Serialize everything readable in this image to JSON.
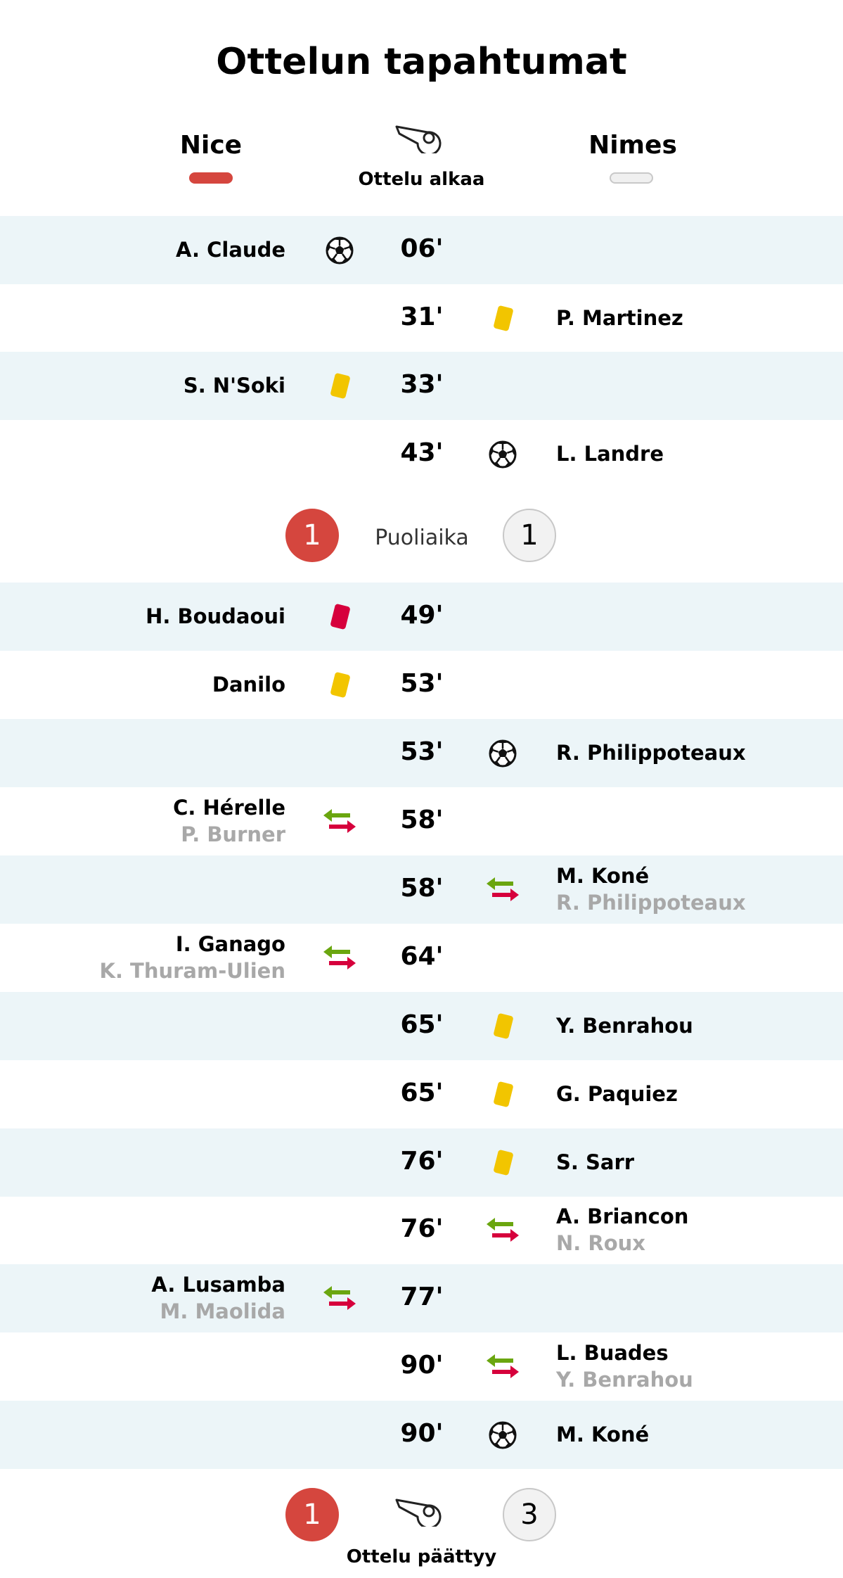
{
  "title": "Ottelun tapahtumat",
  "teams": {
    "home": "Nice",
    "away": "Nimes"
  },
  "start_label": "Ottelu alkaa",
  "end_label": "Ottelu päättyy",
  "halftime": {
    "label": "Puoliaika",
    "home": "1",
    "away": "1"
  },
  "fulltime": {
    "home": "1",
    "away": "3"
  },
  "colors": {
    "home": "#d5463e",
    "shade": "#ecf5f8",
    "yellow": "#f2c500",
    "red": "#d6003c",
    "sub_in": "#6aa60f",
    "sub_out": "#d6003c"
  },
  "events": [
    {
      "minute": "06'",
      "side": "home",
      "type": "goal",
      "player": "A. Claude"
    },
    {
      "minute": "31'",
      "side": "away",
      "type": "yellow-card",
      "player": "P. Martinez"
    },
    {
      "minute": "33'",
      "side": "home",
      "type": "yellow-card",
      "player": "S. N'Soki"
    },
    {
      "minute": "43'",
      "side": "away",
      "type": "goal",
      "player": "L. Landre"
    },
    {
      "minute": "49'",
      "side": "home",
      "type": "red-card",
      "player": "H. Boudaoui"
    },
    {
      "minute": "53'",
      "side": "home",
      "type": "yellow-card",
      "player": "Danilo"
    },
    {
      "minute": "53'",
      "side": "away",
      "type": "goal",
      "player": "R. Philippoteaux"
    },
    {
      "minute": "58'",
      "side": "home",
      "type": "substitution",
      "player": "C. Hérelle",
      "player_out": "P. Burner"
    },
    {
      "minute": "58'",
      "side": "away",
      "type": "substitution",
      "player": "M. Koné",
      "player_out": "R. Philippoteaux"
    },
    {
      "minute": "64'",
      "side": "home",
      "type": "substitution",
      "player": "I. Ganago",
      "player_out": "K. Thuram-Ulien"
    },
    {
      "minute": "65'",
      "side": "away",
      "type": "yellow-card",
      "player": "Y. Benrahou"
    },
    {
      "minute": "65'",
      "side": "away",
      "type": "yellow-card",
      "player": "G. Paquiez"
    },
    {
      "minute": "76'",
      "side": "away",
      "type": "yellow-card",
      "player": "S. Sarr"
    },
    {
      "minute": "76'",
      "side": "away",
      "type": "substitution",
      "player": "A. Briancon",
      "player_out": "N. Roux"
    },
    {
      "minute": "77'",
      "side": "home",
      "type": "substitution",
      "player": "A. Lusamba",
      "player_out": "M. Maolida"
    },
    {
      "minute": "90'",
      "side": "away",
      "type": "substitution",
      "player": "L. Buades",
      "player_out": "Y. Benrahou"
    },
    {
      "minute": "90'",
      "side": "away",
      "type": "goal",
      "player": "M. Koné"
    }
  ]
}
